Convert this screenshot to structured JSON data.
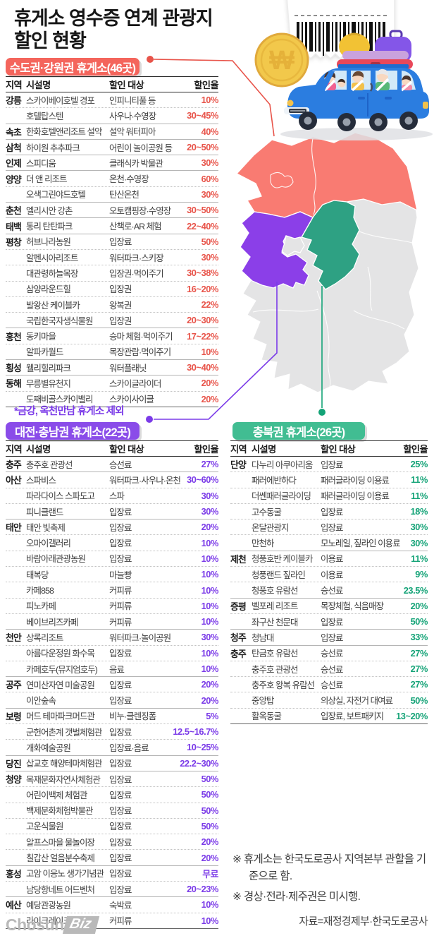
{
  "title": "휴게소 영수증 연계 관광지\n할인 현황",
  "note": "*금강, 옥천만남 휴게소 제외",
  "footnotes": [
    "※ 휴게소는 한국도로공사 지역본부 관할을 기준으로 함.",
    "※ 경상·전라·제주권은 미시행."
  ],
  "source": "자료=재정경제부·한국도로공사",
  "logo": {
    "chosun": "Chosun",
    "biz": "Biz"
  },
  "colors": {
    "red_accent": "#e8544a",
    "red_box": "#f4655c",
    "red_map": "#f97b72",
    "purple_accent": "#7b3be8",
    "purple_box": "#8a4ce9",
    "purple_map": "#8b3fe8",
    "green_accent": "#14a377",
    "green_box": "#41bd92",
    "green_map": "#2ea183",
    "map_gray": "#e4e4e5"
  },
  "map": {
    "regions": [
      {
        "name": "수도권·강원권",
        "color": "#f97b72"
      },
      {
        "name": "대전·충남권",
        "color": "#8b3fe8"
      },
      {
        "name": "충북권",
        "color": "#2ea183"
      },
      {
        "name": "미시행(경상·전라·제주권)",
        "color": "#e4e4e5"
      }
    ]
  },
  "illustration": {
    "coin_symbol": "₩"
  },
  "sections": [
    {
      "header": "수도권·강원권 휴게소(46곳)",
      "accent": "#e8544a",
      "box_color": "#f4655c",
      "columns": [
        "지역",
        "시설명",
        "할인 대상",
        "할인율"
      ],
      "rows": [
        [
          "강릉",
          "스카이베이호텔 경포",
          "인피니티풀 등",
          "10%"
        ],
        [
          "",
          "호텔탑스텐",
          "사우나·수영장",
          "30~45%"
        ],
        [
          "속초",
          "한화호텔앤리조트 설악",
          "설악 워터피아",
          "40%"
        ],
        [
          "삼척",
          "하이원 추추파크",
          "어린이 놀이공원 등",
          "20~50%"
        ],
        [
          "인제",
          "스피디움",
          "클래식카 박물관",
          "30%"
        ],
        [
          "양양",
          "더 앤 리조트",
          "온천·수영장",
          "60%"
        ],
        [
          "",
          "오색그린야드호텔",
          "탄산온천",
          "30%"
        ],
        [
          "춘천",
          "엘리시안 강촌",
          "오토캠핑장·수영장",
          "30~50%"
        ],
        [
          "태백",
          "통리 탄탄파크",
          "산책로·AR 체험",
          "22~40%"
        ],
        [
          "평창",
          "허브나라농원",
          "입장료",
          "50%"
        ],
        [
          "",
          "알펜시아리조트",
          "워터파크·스키장",
          "30%"
        ],
        [
          "",
          "대관령하늘목장",
          "입장권·먹이주기",
          "30~38%"
        ],
        [
          "",
          "삼양라운드힐",
          "입장권",
          "16~20%"
        ],
        [
          "",
          "발왕산 케이블카",
          "왕복권",
          "22%"
        ],
        [
          "",
          "국립한국자생식물원",
          "입장권",
          "20~30%"
        ],
        [
          "홍천",
          "동키마을",
          "승마 체험·먹이주기",
          "17~22%"
        ],
        [
          "",
          "알파카월드",
          "목장관람·먹이주기",
          "10%"
        ],
        [
          "횡성",
          "웰리힐리파크",
          "워터플래닛",
          "30~40%"
        ],
        [
          "동해",
          "무릉별유천지",
          "스카이글라이더",
          "20%"
        ],
        [
          "",
          "도째비골스카이밸리",
          "스카이사이클",
          "20%"
        ]
      ]
    },
    {
      "header": "대전·충남권 휴게소(22곳)",
      "accent": "#7b3be8",
      "box_color": "#8a4ce9",
      "columns": [
        "지역",
        "시설명",
        "할인 대상",
        "할인율"
      ],
      "rows": [
        [
          "충주",
          "충주호 관광선",
          "승선료",
          "27%"
        ],
        [
          "아산",
          "스파비스",
          "워터파크·사우나·온천",
          "30~60%"
        ],
        [
          "",
          "파라다이스 스파도고",
          "스파",
          "30%"
        ],
        [
          "",
          "피니클랜드",
          "입장료",
          "30%"
        ],
        [
          "태안",
          "태안 빛축제",
          "입장료",
          "20%"
        ],
        [
          "",
          "오마이갤러리",
          "입장료",
          "10%"
        ],
        [
          "",
          "바람아래관광농원",
          "입장료",
          "10%"
        ],
        [
          "",
          "태복당",
          "마늘빵",
          "10%"
        ],
        [
          "",
          "카페858",
          "커피류",
          "10%"
        ],
        [
          "",
          "피노카페",
          "커피류",
          "10%"
        ],
        [
          "",
          "베이브리즈카페",
          "커피류",
          "10%"
        ],
        [
          "천안",
          "상록리조트",
          "워터파크·놀이공원",
          "30%"
        ],
        [
          "",
          "아름다운정원 화수목",
          "입장료",
          "10%"
        ],
        [
          "",
          "카페호두(뮤지엄호두)",
          "음료",
          "10%"
        ],
        [
          "공주",
          "연미산자연 미술공원",
          "입장료",
          "20%"
        ],
        [
          "",
          "이안숲속",
          "입장료",
          "20%"
        ],
        [
          "보령",
          "머드 테마파크머드관",
          "비누·클렌징폼",
          "5%"
        ],
        [
          "",
          "군헌어촌계 갯벌체험관",
          "입장료",
          "12.5~16.7%"
        ],
        [
          "",
          "개화예술공원",
          "입장료·음료",
          "10~25%"
        ],
        [
          "당진",
          "삽교호 해양테마체험관",
          "입장료",
          "22.2~30%"
        ],
        [
          "청양",
          "목재문화자연사체험관",
          "입장료",
          "50%"
        ],
        [
          "",
          "어린이백제 체험관",
          "입장료",
          "50%"
        ],
        [
          "",
          "백제문화체험박물관",
          "입장료",
          "50%"
        ],
        [
          "",
          "고운식물원",
          "입장료",
          "50%"
        ],
        [
          "",
          "알프스마을 물놀이장",
          "입장료",
          "20%"
        ],
        [
          "",
          "칠갑산 얼음분수축제",
          "입장료",
          "20%"
        ],
        [
          "홍성",
          "고암 이응노 생가기념관",
          "입장료",
          "무료"
        ],
        [
          "",
          "남당항네트 어드벤처",
          "입장료",
          "20~23%"
        ],
        [
          "예산",
          "예당관광농원",
          "숙박료",
          "10%"
        ],
        [
          "",
          "라이크레이크카페",
          "커피류",
          "10%"
        ]
      ]
    },
    {
      "header": "충북권 휴게소(26곳)",
      "accent": "#14a377",
      "box_color": "#41bd92",
      "columns": [
        "지역",
        "시설명",
        "할인 대상",
        "할인율"
      ],
      "rows": [
        [
          "단양",
          "다누리 아쿠아리움",
          "입장료",
          "25%"
        ],
        [
          "",
          "패러에반하다",
          "패러글라이딩 이용료",
          "11%"
        ],
        [
          "",
          "더쎈패러글라이딩",
          "패러글라이딩 이용료",
          "11%"
        ],
        [
          "",
          "고수동굴",
          "입장료",
          "18%"
        ],
        [
          "",
          "온달관광지",
          "입장료",
          "30%"
        ],
        [
          "",
          "만천하",
          "모노레일, 짚라인 이용료",
          "30%"
        ],
        [
          "제천",
          "청풍호반 케이블카",
          "이용료",
          "11%"
        ],
        [
          "",
          "청풍랜드 짚라인",
          "이용료",
          "9%"
        ],
        [
          "",
          "청풍호 유람선",
          "승선료",
          "23.5%"
        ],
        [
          "증평",
          "벨포레 리조트",
          "목장체험, 식음매장",
          "20%"
        ],
        [
          "",
          "좌구산 천문대",
          "입장료",
          "50%"
        ],
        [
          "청주",
          "청남대",
          "입장료",
          "33%"
        ],
        [
          "충주",
          "탄금호 유람선",
          "승선료",
          "27%"
        ],
        [
          "",
          "충주호 관광선",
          "승선료",
          "27%"
        ],
        [
          "",
          "충주호 왕복 유람선",
          "승선료",
          "27%"
        ],
        [
          "",
          "중앙탑",
          "의상실, 자전거 대여료",
          "50%"
        ],
        [
          "",
          "활옥동굴",
          "입장료, 보트패키지",
          "13~20%"
        ]
      ]
    }
  ]
}
